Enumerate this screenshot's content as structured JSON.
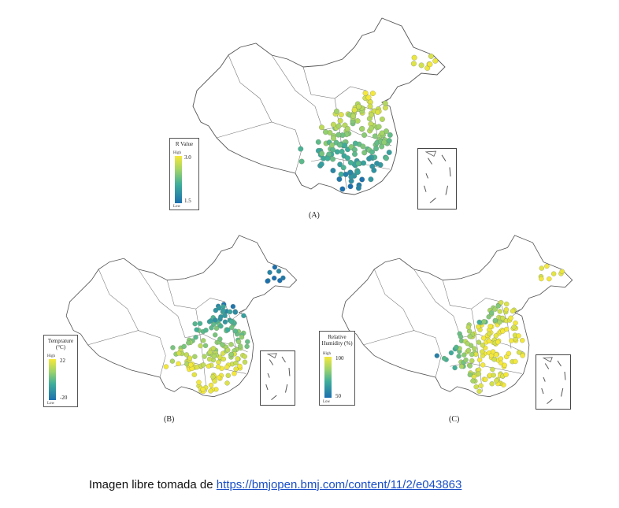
{
  "panels": [
    {
      "id": "A",
      "label": "(A)",
      "legend": {
        "title": "R Value",
        "high_word": "High",
        "low_word": "Low",
        "high_value": "3.0",
        "low_value": "1.5"
      }
    },
    {
      "id": "B",
      "label": "(B)",
      "legend": {
        "title": "Temprature (°C)",
        "high_word": "High",
        "low_word": "Low",
        "high_value": "22",
        "low_value": "-20"
      }
    },
    {
      "id": "C",
      "label": "(C)",
      "legend": {
        "title": "Relative Humidity (%)",
        "high_word": "High",
        "low_word": "Low",
        "high_value": "100",
        "low_value": "50"
      }
    }
  ],
  "colors": {
    "high": "#f5e83a",
    "mid": "#3fae9a",
    "low": "#1c6fae",
    "outline": "#555555"
  },
  "caption": {
    "text": "Imagen libre tomada de ",
    "link": "https://bmjopen.bmj.com/content/11/2/e043863"
  }
}
